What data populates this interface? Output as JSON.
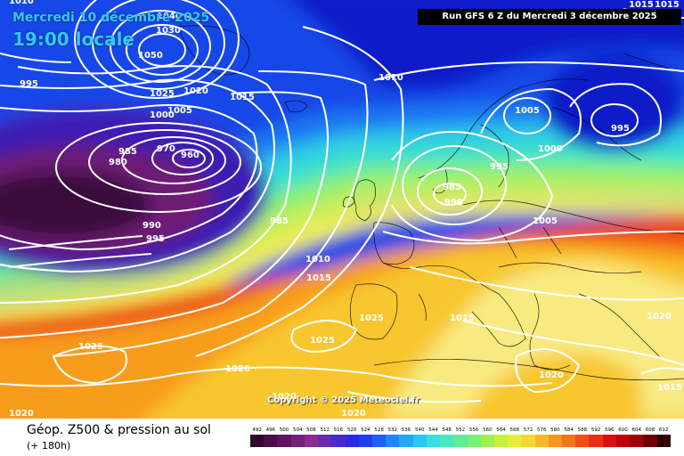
{
  "header": {
    "date_text": "Mercredi 10 décembre 2025",
    "time_text": "19:00 locale",
    "run_text": "Run GFS 6 Z du Mercredi 3 décembre 2025"
  },
  "copyright": "Copyright © 2025 Meteociel.fr",
  "footer": {
    "param_title": "Géop. Z500 & pression au sol",
    "param_sub": "(+ 180h)"
  },
  "isobar_labels": [
    "1010",
    "1030",
    "1040",
    "1050",
    "995",
    "1025",
    "1020",
    "1015",
    "1000",
    "1005",
    "985",
    "980",
    "970",
    "960",
    "990",
    "995",
    "985",
    "1010",
    "1015",
    "1025",
    "1025",
    "1020",
    "1020",
    "1010",
    "1005",
    "1000",
    "995",
    "985",
    "990",
    "995",
    "1005",
    "1015",
    "1025",
    "1015",
    "1020",
    "1020",
    "1015",
    "1020",
    "1020",
    "1015"
  ],
  "scale": {
    "labels": [
      "492",
      "496",
      "500",
      "504",
      "508",
      "512",
      "516",
      "520",
      "524",
      "528",
      "532",
      "536",
      "540",
      "544",
      "548",
      "552",
      "556",
      "560",
      "564",
      "568",
      "572",
      "576",
      "580",
      "584",
      "588",
      "592",
      "596",
      "600",
      "604",
      "608",
      "612"
    ],
    "colors": [
      "#2e0a2e",
      "#4a0f4a",
      "#5e1460",
      "#74207a",
      "#8a2c92",
      "#6a2ab0",
      "#4a2ad0",
      "#2a2ae8",
      "#1f3cf0",
      "#1f5ff8",
      "#1f85fc",
      "#22a8fa",
      "#2cc6f2",
      "#3adde0",
      "#4ae8c0",
      "#60ec98",
      "#7cf070",
      "#a0f050",
      "#c8f040",
      "#e8ee38",
      "#f8d830",
      "#f8b828",
      "#f89620",
      "#f87418",
      "#f05010",
      "#e83010",
      "#d81010",
      "#c00008",
      "#a00008",
      "#700008",
      "#300000"
    ]
  },
  "palette": {
    "deep_violet": "#3a0f3d",
    "violet": "#6d1c73",
    "indigo": "#3d1fb2",
    "dark_blue": "#0a1ec8",
    "blue": "#1446e8",
    "mid_blue": "#1f78f2",
    "sky_blue": "#2aa6f4",
    "cyan": "#2fcbe6",
    "aqua": "#3fe2c8",
    "green": "#58ea9a",
    "light_green": "#8cf076",
    "yellow_green": "#c6f05a",
    "yellow": "#f2ee4e",
    "light_yellow": "#f8ea80",
    "orange_yellow": "#f8c62e",
    "orange": "#f89c1e",
    "dark_orange": "#f27416",
    "red_orange": "#ec4a12"
  }
}
